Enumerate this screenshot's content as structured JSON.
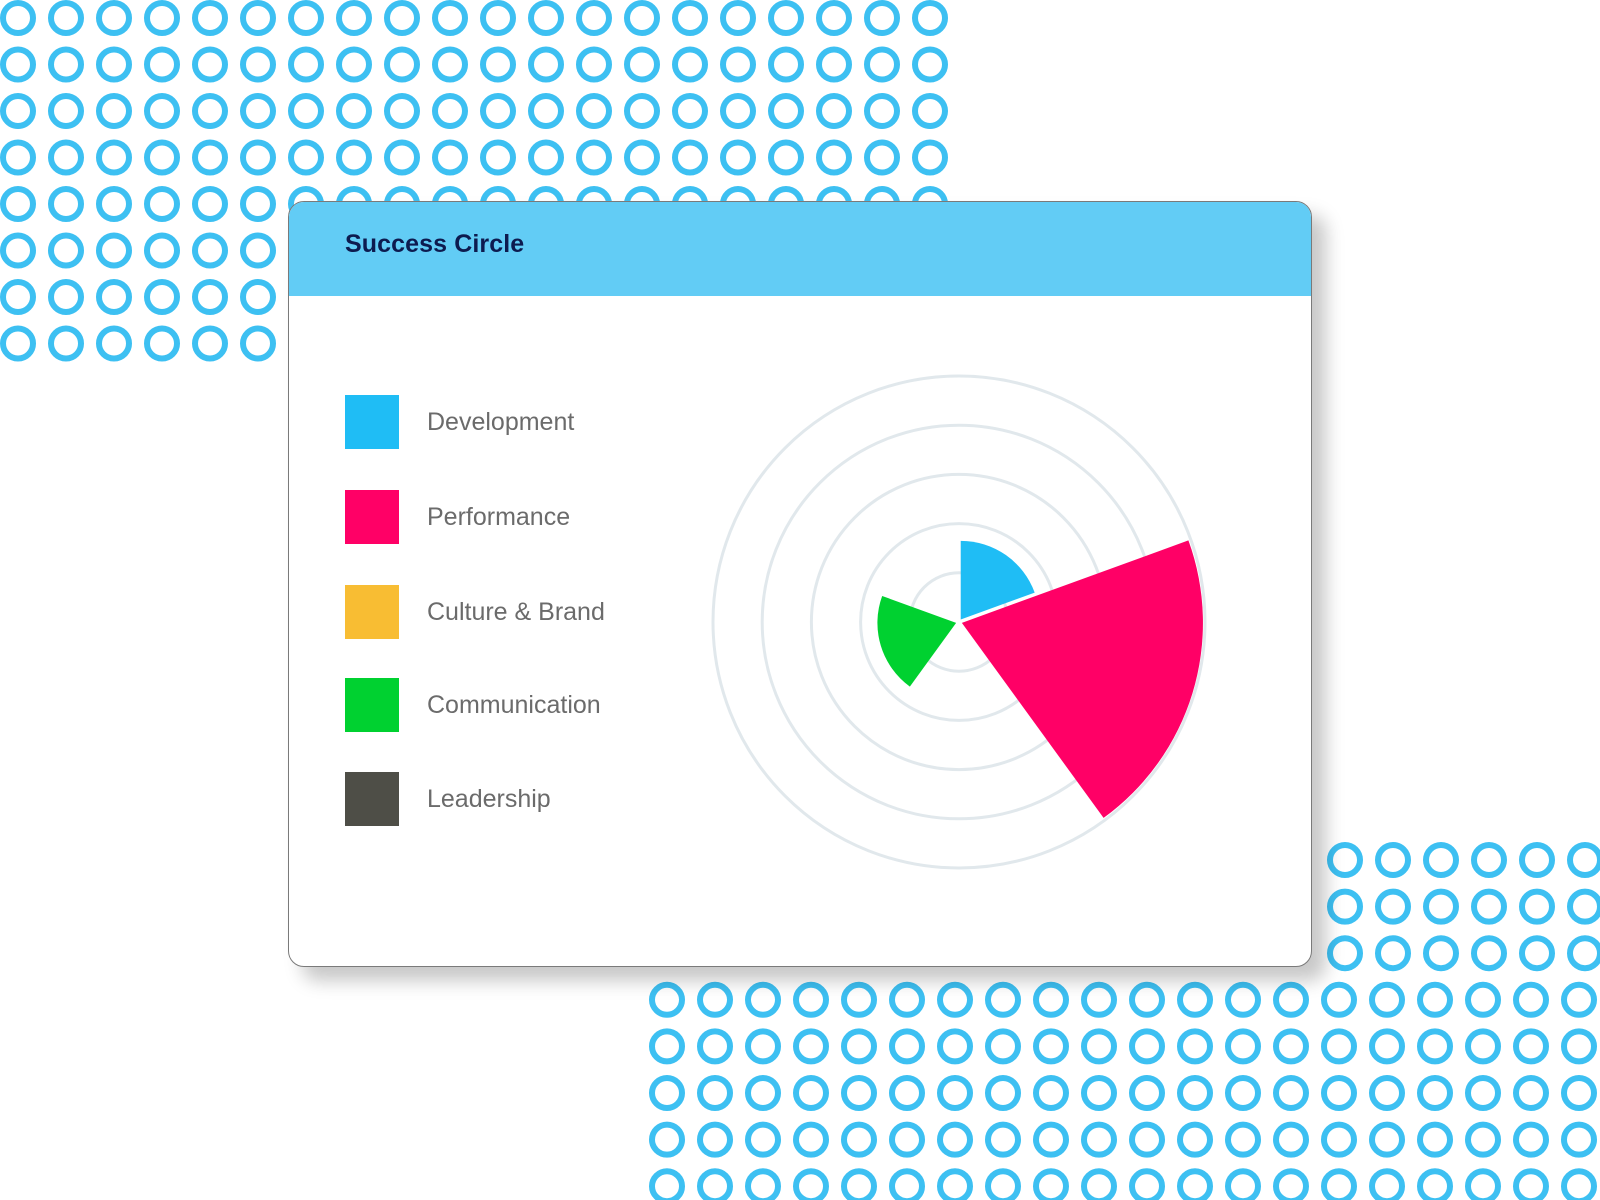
{
  "card": {
    "title": "Success Circle"
  },
  "colors": {
    "pattern_ring": "#3dc0f2",
    "header_bg": "#62ccf5",
    "grid_ring": "#e1e8ec"
  },
  "chart_data": {
    "type": "polar-area",
    "title": "Success Circle",
    "legend_placement": "left",
    "grid": true,
    "rlim": [
      0,
      5
    ],
    "ring_count": 5,
    "series": [
      {
        "name": "Development",
        "color": "#1fbdf5",
        "value": 1.6,
        "start_deg": 0,
        "end_deg": 70
      },
      {
        "name": "Performance",
        "color": "#ff0066",
        "value": 4.9,
        "start_deg": 70,
        "end_deg": 144
      },
      {
        "name": "Culture & Brand",
        "color": "#f8bd33",
        "value": 0,
        "start_deg": 144,
        "end_deg": 216
      },
      {
        "name": "Communication",
        "color": "#00d130",
        "value": 1.6,
        "start_deg": 216,
        "end_deg": 290
      },
      {
        "name": "Leadership",
        "color": "#4e4e47",
        "value": 0,
        "start_deg": 290,
        "end_deg": 360
      }
    ]
  }
}
